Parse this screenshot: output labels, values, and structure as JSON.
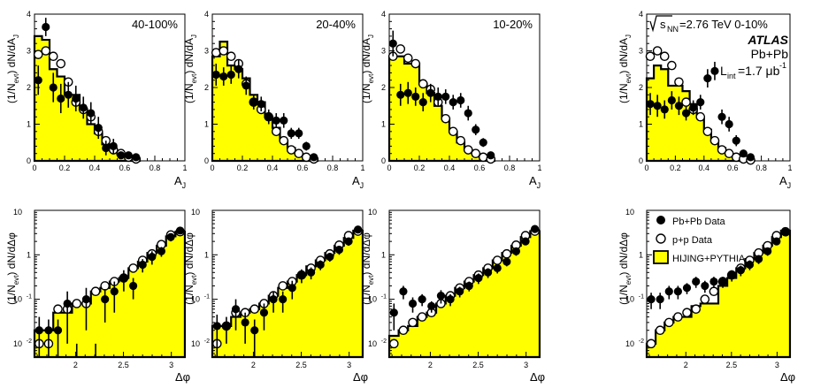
{
  "chart_data": [
    {
      "type": "histogram-with-points",
      "title": "40-100%",
      "xlabel": "A_J",
      "ylabel": "(1/N_evt) dN/dA_J",
      "xlim": [
        0,
        1
      ],
      "ylim": [
        0,
        4
      ],
      "yscale": "linear",
      "xticks": [
        "0",
        "0.2",
        "0.4",
        "0.6",
        "0.8",
        "1"
      ],
      "yticks": [
        "0",
        "1",
        "2",
        "3",
        "4"
      ],
      "bin_width": 0.05,
      "bins": [
        0.0,
        0.05,
        0.1,
        0.15,
        0.2,
        0.25,
        0.3,
        0.35,
        0.4,
        0.45,
        0.5,
        0.55,
        0.6,
        0.65
      ],
      "series": [
        {
          "name": "HIJING+PYTHIA",
          "values": [
            3.4,
            3.3,
            2.5,
            2.3,
            1.8,
            1.8,
            1.4,
            1.0,
            0.75,
            0.45,
            0.28,
            0.18,
            0.12,
            0.05
          ]
        },
        {
          "name": "Pb+Pb Data",
          "values": [
            2.2,
            3.65,
            2.0,
            1.7,
            1.8,
            1.7,
            1.45,
            1.3,
            0.9,
            0.35,
            0.4,
            0.15,
            0.15,
            0.1
          ],
          "errors": [
            0.4,
            0.25,
            0.4,
            0.4,
            0.35,
            0.35,
            0.3,
            0.3,
            0.3,
            0.2,
            0.2,
            0.1,
            0.1,
            0.1
          ]
        },
        {
          "name": "p+p Data",
          "values": [
            2.9,
            3.0,
            2.85,
            2.65,
            2.15,
            1.6,
            1.4,
            1.2,
            0.8,
            0.55,
            0.3,
            0.2,
            0.1,
            0.05
          ],
          "errors": [
            0.1,
            0.1,
            0.1,
            0.1,
            0.1,
            0.1,
            0.08,
            0.08,
            0.07,
            0.06,
            0.05,
            0.04,
            0.03,
            0.03
          ]
        }
      ]
    },
    {
      "type": "histogram-with-points",
      "title": "20-40%",
      "xlabel": "A_J",
      "ylabel": "(1/N_evt) dN/dA_J",
      "xlim": [
        0,
        1
      ],
      "ylim": [
        0,
        4
      ],
      "yscale": "linear",
      "xticks": [
        "0",
        "0.2",
        "0.4",
        "0.6",
        "0.8",
        "1"
      ],
      "yticks": [
        "0",
        "1",
        "2",
        "3",
        "4"
      ],
      "bin_width": 0.05,
      "bins": [
        0.0,
        0.05,
        0.1,
        0.15,
        0.2,
        0.25,
        0.3,
        0.35,
        0.4,
        0.45,
        0.5,
        0.55,
        0.6,
        0.65
      ],
      "series": [
        {
          "name": "HIJING+PYTHIA",
          "values": [
            2.85,
            3.25,
            2.6,
            2.5,
            2.25,
            1.8,
            1.6,
            1.2,
            0.9,
            0.55,
            0.35,
            0.2,
            0.1,
            0.05
          ]
        },
        {
          "name": "Pb+Pb Data",
          "values": [
            2.35,
            2.3,
            2.35,
            2.5,
            2.05,
            1.6,
            1.55,
            1.2,
            1.1,
            1.1,
            0.75,
            0.75,
            0.4,
            0.1
          ],
          "errors": [
            0.3,
            0.25,
            0.25,
            0.25,
            0.25,
            0.2,
            0.2,
            0.2,
            0.2,
            0.2,
            0.15,
            0.15,
            0.12,
            0.08
          ]
        },
        {
          "name": "p+p Data",
          "values": [
            2.95,
            3.0,
            2.85,
            2.65,
            2.1,
            1.6,
            1.4,
            1.2,
            0.8,
            0.55,
            0.3,
            0.2,
            0.1,
            0.05
          ],
          "errors": [
            0.1,
            0.1,
            0.1,
            0.1,
            0.1,
            0.1,
            0.08,
            0.08,
            0.07,
            0.06,
            0.05,
            0.04,
            0.03,
            0.03
          ]
        }
      ]
    },
    {
      "type": "histogram-with-points",
      "title": "10-20%",
      "xlabel": "A_J",
      "ylabel": "(1/N_evt) dN/dA_J",
      "xlim": [
        0,
        1
      ],
      "ylim": [
        0,
        4
      ],
      "yscale": "linear",
      "xticks": [
        "0",
        "0.2",
        "0.4",
        "0.6",
        "0.8",
        "1"
      ],
      "yticks": [
        "0",
        "1",
        "2",
        "3",
        "4"
      ],
      "bin_width": 0.05,
      "bins": [
        0.0,
        0.05,
        0.1,
        0.15,
        0.2,
        0.25,
        0.3,
        0.35,
        0.4,
        0.45,
        0.5,
        0.55,
        0.6,
        0.65
      ],
      "series": [
        {
          "name": "HIJING+PYTHIA",
          "values": [
            2.85,
            2.85,
            2.65,
            2.65,
            2.1,
            1.85,
            1.5,
            1.15,
            0.8,
            0.5,
            0.3,
            0.2,
            0.1,
            0.05
          ]
        },
        {
          "name": "Pb+Pb Data",
          "values": [
            3.2,
            1.8,
            1.85,
            1.75,
            1.6,
            1.85,
            1.75,
            1.75,
            1.6,
            1.65,
            1.3,
            0.85,
            0.5,
            0.15
          ],
          "errors": [
            0.35,
            0.3,
            0.3,
            0.25,
            0.25,
            0.25,
            0.25,
            0.2,
            0.2,
            0.2,
            0.2,
            0.15,
            0.12,
            0.08
          ]
        },
        {
          "name": "p+p Data",
          "values": [
            2.85,
            3.05,
            2.8,
            2.65,
            2.1,
            1.95,
            1.6,
            1.15,
            0.8,
            0.55,
            0.3,
            0.2,
            0.1,
            0.05
          ],
          "errors": [
            0.1,
            0.1,
            0.1,
            0.1,
            0.1,
            0.1,
            0.08,
            0.08,
            0.07,
            0.06,
            0.05,
            0.04,
            0.03,
            0.03
          ]
        }
      ]
    },
    {
      "type": "histogram-with-points",
      "title": "0-10%",
      "xlabel": "A_J",
      "ylabel": "(1/N_evt) dN/dA_J",
      "xlim": [
        0,
        1
      ],
      "ylim": [
        0,
        4
      ],
      "yscale": "linear",
      "xticks": [
        "0",
        "0.2",
        "0.4",
        "0.6",
        "0.8",
        "1"
      ],
      "yticks": [
        "0",
        "1",
        "2",
        "3",
        "4"
      ],
      "bin_width": 0.05,
      "bins": [
        0.0,
        0.05,
        0.1,
        0.15,
        0.2,
        0.25,
        0.3,
        0.35,
        0.4,
        0.45,
        0.5,
        0.55,
        0.6,
        0.65,
        0.7
      ],
      "series": [
        {
          "name": "HIJING+PYTHIA",
          "values": [
            2.25,
            2.6,
            2.5,
            2.05,
            2.05,
            1.9,
            1.55,
            1.2,
            0.85,
            0.55,
            0.35,
            0.2,
            0.1,
            0.05,
            0.02
          ]
        },
        {
          "name": "Pb+Pb Data",
          "values": [
            1.55,
            1.5,
            1.4,
            1.65,
            1.5,
            1.3,
            1.45,
            1.6,
            2.25,
            2.45,
            1.2,
            1.0,
            0.55,
            0.2,
            0.1
          ],
          "errors": [
            0.3,
            0.3,
            0.25,
            0.25,
            0.25,
            0.2,
            0.2,
            0.2,
            0.25,
            0.25,
            0.2,
            0.2,
            0.15,
            0.1,
            0.06
          ]
        },
        {
          "name": "p+p Data",
          "values": [
            2.85,
            3.0,
            2.85,
            2.6,
            2.15,
            1.6,
            1.4,
            1.2,
            0.8,
            0.55,
            0.3,
            0.2,
            0.1,
            0.05,
            0.02
          ],
          "errors": [
            0.1,
            0.1,
            0.1,
            0.1,
            0.1,
            0.1,
            0.08,
            0.08,
            0.07,
            0.06,
            0.05,
            0.04,
            0.03,
            0.03,
            0.02
          ]
        }
      ]
    },
    {
      "type": "histogram-with-points",
      "title": "",
      "xlabel": "Δφ",
      "ylabel": "(1/N_evt) dN/dΔφ",
      "xlim": [
        1.571,
        3.1416
      ],
      "ylim": [
        0.005,
        10
      ],
      "yscale": "log",
      "xticks": [
        "2",
        "2.5",
        "3"
      ],
      "yticks": [
        "10^-2",
        "10^-1",
        "1",
        "10"
      ],
      "bin_width": 0.0982,
      "bins": [
        1.571,
        1.669,
        1.767,
        1.865,
        1.963,
        2.062,
        2.16,
        2.258,
        2.356,
        2.454,
        2.553,
        2.651,
        2.749,
        2.847,
        2.945,
        3.043
      ],
      "series": [
        {
          "name": "HIJING+PYTHIA",
          "values": [
            0.02,
            0.02,
            0.05,
            0.05,
            0.08,
            0.08,
            0.15,
            0.18,
            0.25,
            0.3,
            0.5,
            0.7,
            1.1,
            1.6,
            2.6,
            3.3
          ]
        },
        {
          "name": "Pb+Pb Data",
          "values": [
            0.02,
            0.02,
            0.02,
            0.08,
            0.005,
            0.1,
            0.005,
            0.1,
            0.15,
            0.3,
            0.2,
            0.6,
            0.9,
            1.2,
            2.5,
            3.5
          ],
          "errors": [
            0.02,
            0.015,
            0.015,
            0.07,
            0.005,
            0.08,
            0.005,
            0.07,
            0.1,
            0.15,
            0.1,
            0.2,
            0.3,
            0.3,
            0.5,
            0.5
          ]
        },
        {
          "name": "p+p Data",
          "values": [
            0.01,
            0.01,
            0.06,
            0.06,
            0.08,
            0.08,
            0.15,
            0.2,
            0.25,
            0.3,
            0.5,
            0.75,
            1.05,
            1.7,
            2.8,
            3.3
          ],
          "errors": [
            0.002,
            0.002,
            0.005,
            0.005,
            0.006,
            0.006,
            0.01,
            0.01,
            0.015,
            0.02,
            0.03,
            0.04,
            0.05,
            0.08,
            0.1,
            0.12
          ]
        }
      ]
    },
    {
      "type": "histogram-with-points",
      "title": "",
      "xlabel": "Δφ",
      "ylabel": "(1/N_evt) dN/dΔφ",
      "xlim": [
        1.571,
        3.1416
      ],
      "ylim": [
        0.005,
        10
      ],
      "yscale": "log",
      "xticks": [
        "2",
        "2.5",
        "3"
      ],
      "yticks": [
        "10^-2",
        "10^-1",
        "1",
        "10"
      ],
      "bin_width": 0.0982,
      "bins": [
        1.571,
        1.669,
        1.767,
        1.865,
        1.963,
        2.062,
        2.16,
        2.258,
        2.356,
        2.454,
        2.553,
        2.651,
        2.749,
        2.847,
        2.945,
        3.043
      ],
      "series": [
        {
          "name": "HIJING+PYTHIA",
          "values": [
            0.025,
            0.025,
            0.04,
            0.05,
            0.06,
            0.08,
            0.12,
            0.18,
            0.25,
            0.35,
            0.55,
            0.75,
            1.1,
            1.6,
            2.4,
            3.5
          ]
        },
        {
          "name": "Pb+Pb Data",
          "values": [
            0.025,
            0.025,
            0.06,
            0.03,
            0.02,
            0.05,
            0.1,
            0.1,
            0.18,
            0.35,
            0.4,
            0.6,
            0.9,
            1.3,
            2.0,
            3.7
          ],
          "errors": [
            0.02,
            0.015,
            0.04,
            0.02,
            0.015,
            0.03,
            0.05,
            0.05,
            0.08,
            0.12,
            0.12,
            0.15,
            0.2,
            0.3,
            0.4,
            0.5
          ]
        },
        {
          "name": "p+p Data",
          "values": [
            0.01,
            0.025,
            0.05,
            0.05,
            0.06,
            0.08,
            0.12,
            0.2,
            0.25,
            0.35,
            0.5,
            0.75,
            1.05,
            1.65,
            2.7,
            3.4
          ],
          "errors": [
            0.002,
            0.003,
            0.005,
            0.005,
            0.006,
            0.006,
            0.01,
            0.01,
            0.015,
            0.02,
            0.03,
            0.04,
            0.05,
            0.08,
            0.1,
            0.12
          ]
        }
      ]
    },
    {
      "type": "histogram-with-points",
      "title": "",
      "xlabel": "Δφ",
      "ylabel": "(1/N_evt) dN/dΔφ",
      "xlim": [
        1.571,
        3.1416
      ],
      "ylim": [
        0.005,
        10
      ],
      "yscale": "log",
      "xticks": [
        "2",
        "2.5",
        "3"
      ],
      "yticks": [
        "10^-2",
        "10^-1",
        "1",
        "10"
      ],
      "bin_width": 0.0982,
      "bins": [
        1.571,
        1.669,
        1.767,
        1.865,
        1.963,
        2.062,
        2.16,
        2.258,
        2.356,
        2.454,
        2.553,
        2.651,
        2.749,
        2.847,
        2.945,
        3.043
      ],
      "series": [
        {
          "name": "HIJING+PYTHIA",
          "values": [
            0.015,
            0.02,
            0.025,
            0.04,
            0.05,
            0.08,
            0.12,
            0.18,
            0.25,
            0.35,
            0.5,
            0.75,
            1.1,
            1.6,
            2.5,
            3.4
          ]
        },
        {
          "name": "Pb+Pb Data",
          "values": [
            0.05,
            0.15,
            0.08,
            0.1,
            0.07,
            0.12,
            0.1,
            0.15,
            0.2,
            0.3,
            0.4,
            0.5,
            0.7,
            1.2,
            2.0,
            3.8
          ],
          "errors": [
            0.03,
            0.05,
            0.03,
            0.03,
            0.02,
            0.04,
            0.03,
            0.04,
            0.05,
            0.08,
            0.1,
            0.12,
            0.15,
            0.25,
            0.35,
            0.5
          ]
        },
        {
          "name": "p+p Data",
          "values": [
            0.01,
            0.02,
            0.03,
            0.04,
            0.05,
            0.08,
            0.12,
            0.18,
            0.25,
            0.35,
            0.5,
            0.75,
            1.05,
            1.65,
            2.7,
            3.4
          ],
          "errors": [
            0.002,
            0.003,
            0.004,
            0.005,
            0.006,
            0.006,
            0.01,
            0.01,
            0.015,
            0.02,
            0.03,
            0.04,
            0.05,
            0.08,
            0.1,
            0.12
          ]
        }
      ]
    },
    {
      "type": "histogram-with-points",
      "title": "",
      "xlabel": "Δφ",
      "ylabel": "(1/N_evt) dN/dΔφ",
      "xlim": [
        1.571,
        3.1416
      ],
      "ylim": [
        0.005,
        10
      ],
      "yscale": "log",
      "xticks": [
        "2",
        "2.5",
        "3"
      ],
      "yticks": [
        "10^-2",
        "10^-1",
        "1",
        "10"
      ],
      "bin_width": 0.0982,
      "bins": [
        1.571,
        1.669,
        1.767,
        1.865,
        1.963,
        2.062,
        2.16,
        2.258,
        2.356,
        2.454,
        2.553,
        2.651,
        2.749,
        2.847,
        2.945,
        3.043
      ],
      "series": [
        {
          "name": "HIJING+PYTHIA",
          "values": [
            0.01,
            0.02,
            0.03,
            0.04,
            0.04,
            0.07,
            0.08,
            0.08,
            0.2,
            0.3,
            0.5,
            0.8,
            1.1,
            1.6,
            2.5,
            3.5
          ]
        },
        {
          "name": "Pb+Pb Data",
          "values": [
            0.1,
            0.1,
            0.15,
            0.15,
            0.18,
            0.25,
            0.2,
            0.25,
            0.25,
            0.35,
            0.45,
            0.6,
            0.8,
            1.2,
            2.0,
            3.2
          ],
          "errors": [
            0.04,
            0.04,
            0.05,
            0.05,
            0.05,
            0.07,
            0.06,
            0.07,
            0.07,
            0.1,
            0.12,
            0.15,
            0.18,
            0.25,
            0.35,
            0.5
          ]
        },
        {
          "name": "p+p Data",
          "values": [
            0.01,
            0.02,
            0.03,
            0.04,
            0.05,
            0.06,
            0.1,
            0.15,
            0.25,
            0.35,
            0.5,
            0.75,
            1.1,
            1.6,
            2.7,
            3.3
          ],
          "errors": [
            0.002,
            0.003,
            0.004,
            0.005,
            0.006,
            0.006,
            0.01,
            0.01,
            0.015,
            0.02,
            0.03,
            0.04,
            0.05,
            0.08,
            0.1,
            0.12
          ]
        }
      ]
    }
  ],
  "annotations": {
    "sqrt_s": "s",
    "sqrt_s_sub": "NN",
    "energy_text": "=2.76 TeV  0-10%",
    "experiment": "ATLAS",
    "system": "Pb+Pb",
    "lumi_prefix": "L",
    "lumi_sub": "int",
    "lumi_value": "=1.7 μb",
    "lumi_sup": "-1"
  },
  "legend": {
    "pbpb": "Pb+Pb Data",
    "pp": "p+p Data",
    "mc": "HIJING+PYTHIA"
  },
  "colors": {
    "mc_fill": "#ffff00",
    "line": "#000000",
    "background": "#ffffff"
  }
}
